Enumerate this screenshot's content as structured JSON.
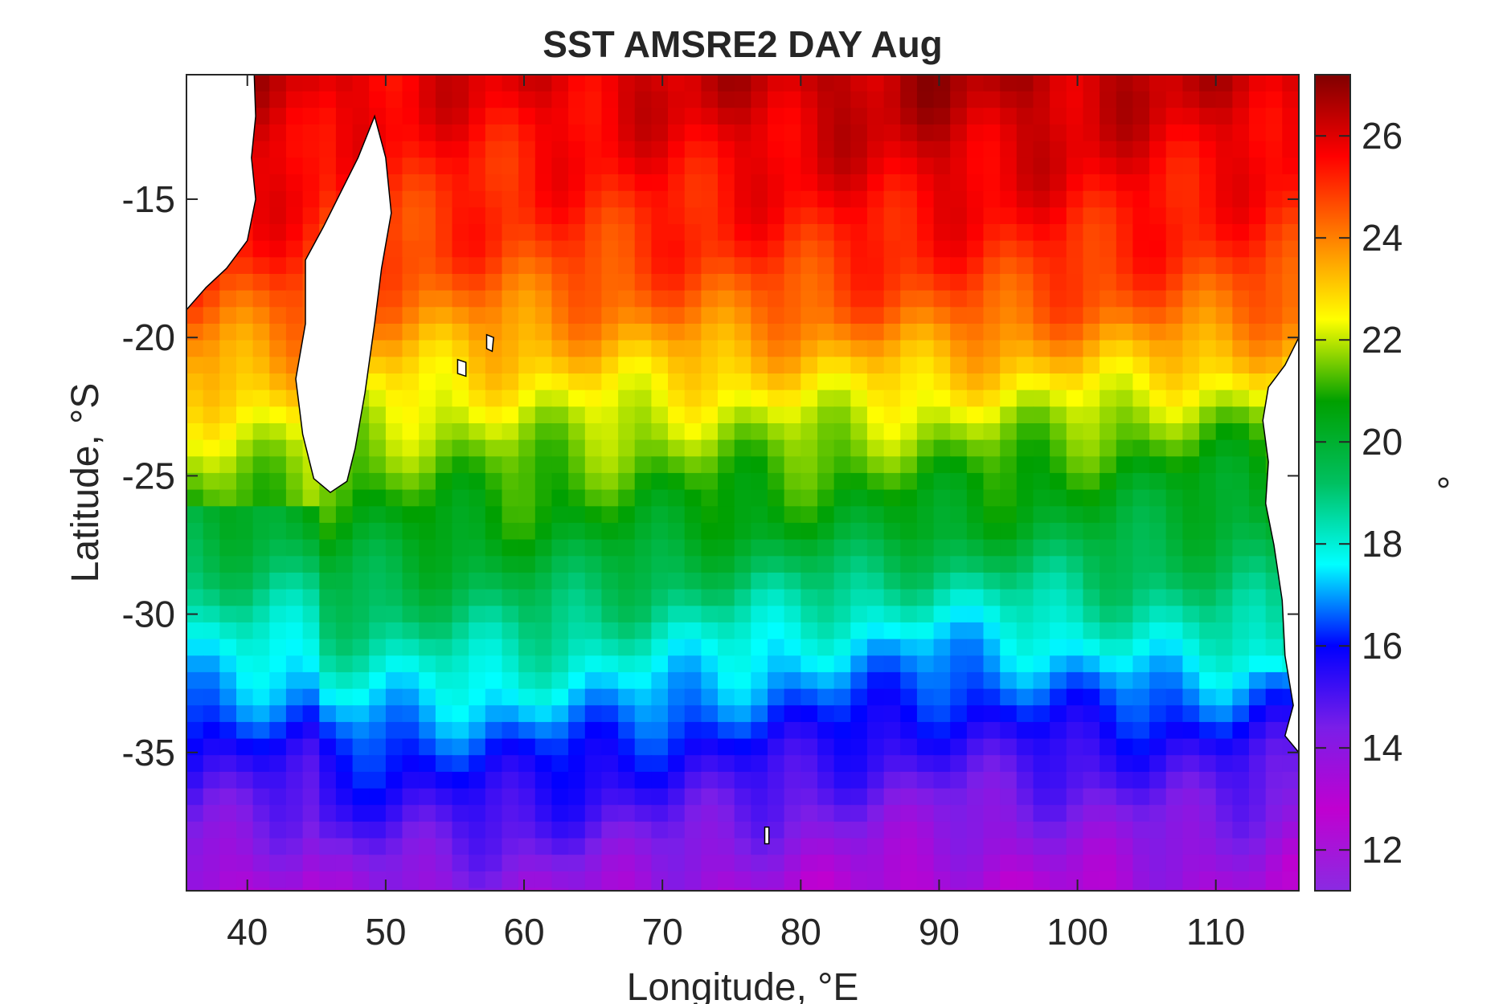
{
  "chart_data": {
    "type": "heatmap",
    "title": "SST AMSRE2 DAY Aug",
    "xlabel": "Longitude, °E",
    "ylabel": "Latitude, °S",
    "colorbar_label": "°",
    "xlim": [
      35.6,
      116.0
    ],
    "ylim": [
      -40.0,
      -10.5
    ],
    "xticks": [
      40,
      50,
      60,
      70,
      80,
      90,
      100,
      110
    ],
    "yticks": [
      -15,
      -20,
      -25,
      -30,
      -35
    ],
    "clim": [
      11.2,
      27.2
    ],
    "cticks": [
      12,
      14,
      16,
      18,
      20,
      22,
      24,
      26
    ],
    "colormap": [
      "#8a2be2",
      "#c000d0",
      "#7a1ee8",
      "#0000ff",
      "#00ffff",
      "#00c060",
      "#00a000",
      "#ffff00",
      "#ff8000",
      "#ff0000",
      "#800000"
    ],
    "grid": false,
    "meridional_profile": {
      "description_free": true,
      "lat": [
        -11,
        -14,
        -17,
        -19,
        -21,
        -23,
        -25,
        -27,
        -29,
        -31,
        -33,
        -35,
        -37,
        -39,
        -40
      ],
      "sst_west_60E": [
        25.9,
        25.3,
        24.8,
        24.0,
        23.0,
        22.0,
        21.2,
        20.5,
        19.6,
        18.6,
        17.5,
        16.2,
        15.3,
        14.3,
        13.8
      ],
      "sst_central_90E": [
        26.6,
        26.0,
        25.2,
        24.5,
        23.2,
        22.0,
        21.0,
        20.2,
        18.6,
        17.2,
        16.2,
        15.2,
        14.2,
        13.4,
        13.0
      ],
      "sst_east_110E": [
        26.2,
        25.6,
        25.0,
        24.3,
        23.0,
        21.5,
        20.5,
        19.8,
        19.2,
        18.3,
        16.8,
        15.5,
        14.6,
        13.8,
        13.5
      ]
    }
  }
}
